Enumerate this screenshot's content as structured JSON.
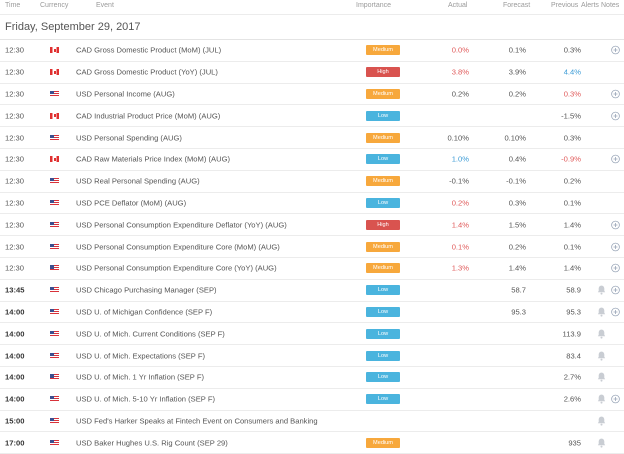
{
  "columns": {
    "time": "Time",
    "currency": "Currency",
    "event": "Event",
    "importance": "Importance",
    "actual": "Actual",
    "forecast": "Forecast",
    "previous": "Previous",
    "alerts": "Alerts",
    "notes": "Notes"
  },
  "date_heading": "Friday, September 29, 2017",
  "colors": {
    "medium": "#f7a83c",
    "high": "#d9534f",
    "low": "#4ab4de",
    "negative": "#e05a5a",
    "revised": "#3b9bd6"
  },
  "rows": [
    {
      "time": "12:30",
      "flag": "canada-flag",
      "event": "CAD Gross Domestic Product (MoM) (JUL)",
      "importance": "Medium",
      "actual": "0.0%",
      "actual_color": "red",
      "forecast": "0.1%",
      "previous": "0.3%",
      "previous_color": "dark",
      "alert": "",
      "note": "add-note-icon"
    },
    {
      "time": "12:30",
      "flag": "canada-flag",
      "event": "CAD Gross Domestic Product (YoY) (JUL)",
      "importance": "High",
      "actual": "3.8%",
      "actual_color": "red",
      "forecast": "3.9%",
      "previous": "4.4%",
      "previous_color": "blue",
      "alert": "",
      "note": ""
    },
    {
      "time": "12:30",
      "flag": "usa-flag",
      "event": "USD Personal Income (AUG)",
      "importance": "Medium",
      "actual": "0.2%",
      "actual_color": "dark",
      "forecast": "0.2%",
      "previous": "0.3%",
      "previous_color": "red",
      "alert": "",
      "note": "add-note-icon"
    },
    {
      "time": "12:30",
      "flag": "canada-flag",
      "event": "CAD Industrial Product Price (MoM) (AUG)",
      "importance": "Low",
      "actual": "",
      "actual_color": "dark",
      "forecast": "",
      "previous": "-1.5%",
      "previous_color": "dark",
      "alert": "",
      "note": "add-note-icon"
    },
    {
      "time": "12:30",
      "flag": "usa-flag",
      "event": "USD Personal Spending (AUG)",
      "importance": "Medium",
      "actual": "0.10%",
      "actual_color": "dark",
      "forecast": "0.10%",
      "previous": "0.3%",
      "previous_color": "dark",
      "alert": "",
      "note": ""
    },
    {
      "time": "12:30",
      "flag": "canada-flag",
      "event": "CAD Raw Materials Price Index (MoM) (AUG)",
      "importance": "Low",
      "actual": "1.0%",
      "actual_color": "blue",
      "forecast": "0.4%",
      "previous": "-0.9%",
      "previous_color": "red",
      "alert": "",
      "note": "add-note-icon"
    },
    {
      "time": "12:30",
      "flag": "usa-flag",
      "event": "USD Real Personal Spending (AUG)",
      "importance": "Medium",
      "actual": "-0.1%",
      "actual_color": "dark",
      "forecast": "-0.1%",
      "previous": "0.2%",
      "previous_color": "dark",
      "alert": "",
      "note": ""
    },
    {
      "time": "12:30",
      "flag": "usa-flag",
      "event": "USD PCE Deflator (MoM) (AUG)",
      "importance": "Low",
      "actual": "0.2%",
      "actual_color": "red",
      "forecast": "0.3%",
      "previous": "0.1%",
      "previous_color": "dark",
      "alert": "",
      "note": ""
    },
    {
      "time": "12:30",
      "flag": "usa-flag",
      "event": "USD Personal Consumption Expenditure Deflator (YoY) (AUG)",
      "importance": "High",
      "actual": "1.4%",
      "actual_color": "red",
      "forecast": "1.5%",
      "previous": "1.4%",
      "previous_color": "dark",
      "alert": "",
      "note": "add-note-icon"
    },
    {
      "time": "12:30",
      "flag": "usa-flag",
      "event": "USD Personal Consumption Expenditure Core (MoM) (AUG)",
      "importance": "Medium",
      "actual": "0.1%",
      "actual_color": "red",
      "forecast": "0.2%",
      "previous": "0.1%",
      "previous_color": "dark",
      "alert": "",
      "note": "add-note-icon"
    },
    {
      "time": "12:30",
      "flag": "usa-flag",
      "event": "USD Personal Consumption Expenditure Core (YoY) (AUG)",
      "importance": "Medium",
      "actual": "1.3%",
      "actual_color": "red",
      "forecast": "1.4%",
      "previous": "1.4%",
      "previous_color": "dark",
      "alert": "",
      "note": "add-note-icon"
    },
    {
      "time": "13:45",
      "time_bold": true,
      "flag": "usa-flag",
      "event": "USD Chicago Purchasing Manager (SEP)",
      "importance": "Low",
      "actual": "",
      "actual_color": "dark",
      "forecast": "58.7",
      "previous": "58.9",
      "previous_color": "dark",
      "alert": "bell-icon",
      "note": "add-note-icon"
    },
    {
      "time": "14:00",
      "time_bold": true,
      "flag": "usa-flag",
      "event": "USD U. of Michigan Confidence (SEP F)",
      "importance": "Low",
      "actual": "",
      "actual_color": "dark",
      "forecast": "95.3",
      "previous": "95.3",
      "previous_color": "dark",
      "alert": "bell-icon",
      "note": "add-note-icon"
    },
    {
      "time": "14:00",
      "time_bold": true,
      "flag": "usa-flag",
      "event": "USD U. of Mich. Current Conditions (SEP F)",
      "importance": "Low",
      "actual": "",
      "actual_color": "dark",
      "forecast": "",
      "previous": "113.9",
      "previous_color": "dark",
      "alert": "bell-icon",
      "note": ""
    },
    {
      "time": "14:00",
      "time_bold": true,
      "flag": "usa-flag",
      "event": "USD U. of Mich. Expectations (SEP F)",
      "importance": "Low",
      "actual": "",
      "actual_color": "dark",
      "forecast": "",
      "previous": "83.4",
      "previous_color": "dark",
      "alert": "bell-icon",
      "note": ""
    },
    {
      "time": "14:00",
      "time_bold": true,
      "flag": "usa-flag",
      "event": "USD U. of Mich. 1 Yr Inflation (SEP F)",
      "importance": "Low",
      "actual": "",
      "actual_color": "dark",
      "forecast": "",
      "previous": "2.7%",
      "previous_color": "dark",
      "alert": "bell-icon",
      "note": ""
    },
    {
      "time": "14:00",
      "time_bold": true,
      "flag": "usa-flag",
      "event": "USD U. of Mich. 5-10 Yr Inflation (SEP F)",
      "importance": "Low",
      "actual": "",
      "actual_color": "dark",
      "forecast": "",
      "previous": "2.6%",
      "previous_color": "dark",
      "alert": "bell-icon",
      "note": "add-note-icon"
    },
    {
      "time": "15:00",
      "time_bold": true,
      "flag": "usa-flag",
      "event": "USD Fed's Harker Speaks at Fintech Event on Consumers and Banking",
      "importance": "",
      "actual": "",
      "actual_color": "dark",
      "forecast": "",
      "previous": "",
      "previous_color": "dark",
      "alert": "bell-icon",
      "note": ""
    },
    {
      "time": "17:00",
      "time_bold": true,
      "flag": "usa-flag",
      "event": "USD Baker Hughes U.S. Rig Count (SEP 29)",
      "importance": "Medium",
      "actual": "",
      "actual_color": "dark",
      "forecast": "",
      "previous": "935",
      "previous_color": "dark",
      "alert": "bell-icon",
      "note": ""
    }
  ]
}
